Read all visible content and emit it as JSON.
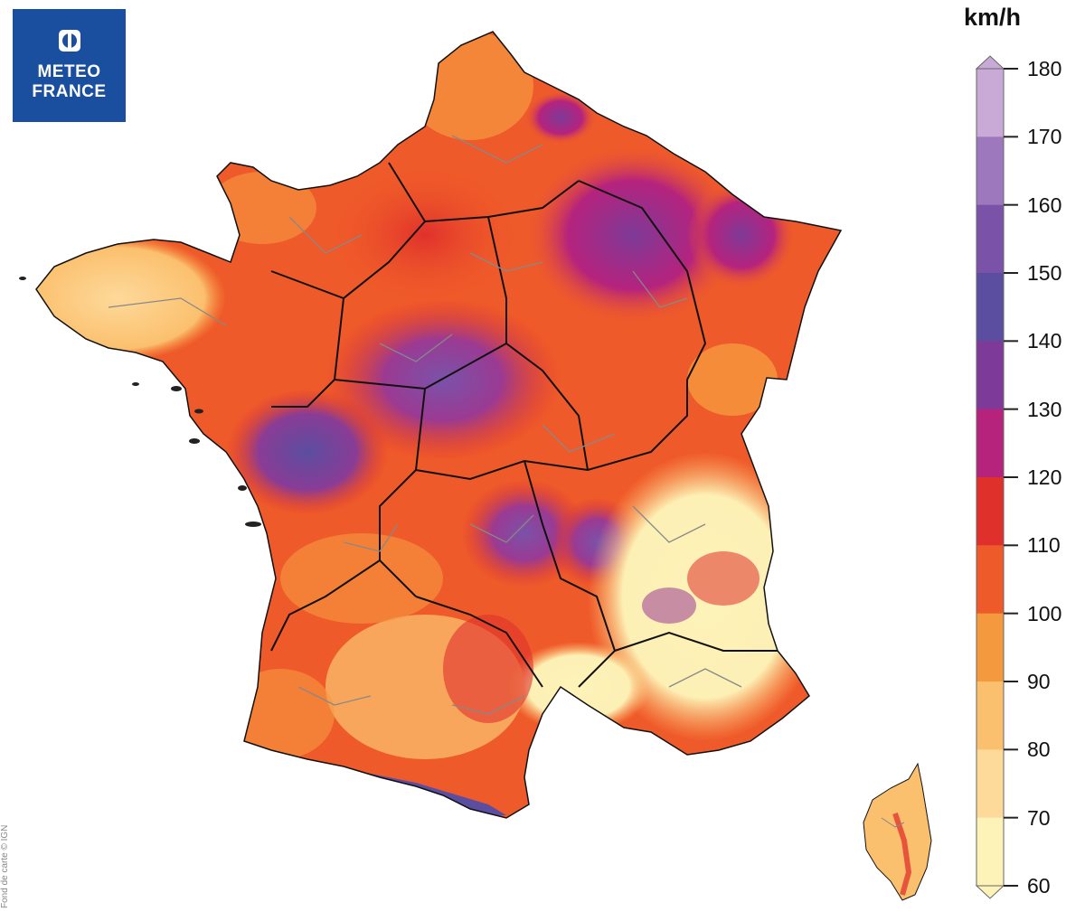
{
  "logo": {
    "line1": "METEO",
    "line2": "FRANCE",
    "icon": "meteo-france-logo-icon",
    "background": "#1a4fa0"
  },
  "legend": {
    "unit": "km/h",
    "ticks": [
      "180",
      "170",
      "160",
      "150",
      "140",
      "130",
      "120",
      "110",
      "100",
      "90",
      "80",
      "70",
      "60"
    ],
    "colors": [
      {
        "range": "170-180",
        "color": "#c9a9d6"
      },
      {
        "range": "160-170",
        "color": "#9d78bd"
      },
      {
        "range": "150-160",
        "color": "#7a52a8"
      },
      {
        "range": "140-150",
        "color": "#5b4ea0"
      },
      {
        "range": "130-140",
        "color": "#7e3a98"
      },
      {
        "range": "120-130",
        "color": "#b5237d"
      },
      {
        "range": "110-120",
        "color": "#e0302c"
      },
      {
        "range": "100-110",
        "color": "#ef5a2a"
      },
      {
        "range": "90-100",
        "color": "#f5993f"
      },
      {
        "range": "80-90",
        "color": "#fbc06e"
      },
      {
        "range": "70-80",
        "color": "#fdd99a"
      },
      {
        "range": "60-70",
        "color": "#fdf2b8"
      }
    ]
  },
  "map": {
    "name": "France",
    "inset": "Corse"
  },
  "credit": "Fond de carte © IGN"
}
